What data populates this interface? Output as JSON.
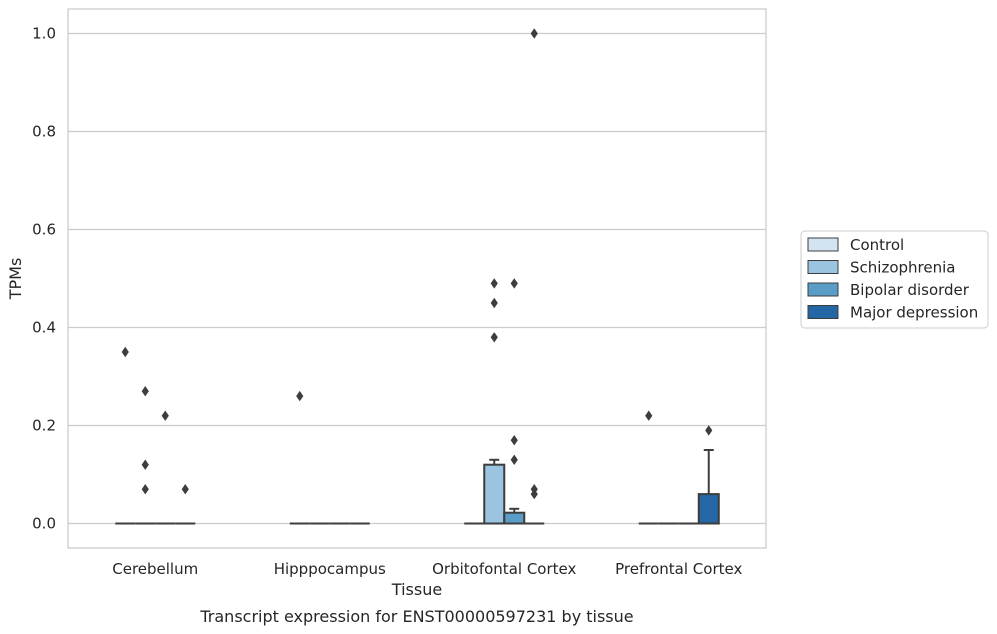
{
  "chart_data": {
    "type": "box",
    "caption": "Transcript expression for ENST00000597231 by tissue",
    "xlabel": "Tissue",
    "ylabel": "TPMs",
    "ylim": [
      -0.05,
      1.05
    ],
    "yticks": [
      0.0,
      0.2,
      0.4,
      0.6,
      0.8,
      1.0
    ],
    "ytick_labels": [
      "0.0",
      "0.2",
      "0.4",
      "0.6",
      "0.8",
      "1.0"
    ],
    "grid": "horizontal",
    "legend_position": "right",
    "categories": [
      "Cerebellum",
      "Hipppocampus",
      "Orbitofontal Cortex",
      "Prefrontal Cortex"
    ],
    "series": [
      {
        "name": "Control",
        "color": "#d3e3f2",
        "boxes": [
          {
            "q1": 0,
            "median": 0,
            "q3": 0,
            "whisker_low": 0,
            "whisker_high": 0,
            "outliers": [
              0.35
            ]
          },
          {
            "q1": 0,
            "median": 0,
            "q3": 0,
            "whisker_low": 0,
            "whisker_high": 0,
            "outliers": [
              0.26
            ]
          },
          {
            "q1": 0,
            "median": 0,
            "q3": 0,
            "whisker_low": 0,
            "whisker_high": 0,
            "outliers": []
          },
          {
            "q1": 0,
            "median": 0,
            "q3": 0,
            "whisker_low": 0,
            "whisker_high": 0,
            "outliers": [
              0.22
            ]
          }
        ]
      },
      {
        "name": "Schizophrenia",
        "color": "#9ac4df",
        "boxes": [
          {
            "q1": 0,
            "median": 0,
            "q3": 0,
            "whisker_low": 0,
            "whisker_high": 0,
            "outliers": [
              0.27,
              0.12,
              0.07
            ]
          },
          {
            "q1": 0,
            "median": 0,
            "q3": 0,
            "whisker_low": 0,
            "whisker_high": 0,
            "outliers": []
          },
          {
            "q1": 0,
            "median": 0,
            "q3": 0.12,
            "whisker_low": 0,
            "whisker_high": 0.13,
            "outliers": [
              0.49,
              0.45,
              0.38
            ]
          },
          {
            "q1": 0,
            "median": 0,
            "q3": 0,
            "whisker_low": 0,
            "whisker_high": 0,
            "outliers": []
          }
        ]
      },
      {
        "name": "Bipolar disorder",
        "color": "#5a9dc8",
        "boxes": [
          {
            "q1": 0,
            "median": 0,
            "q3": 0,
            "whisker_low": 0,
            "whisker_high": 0,
            "outliers": [
              0.22
            ]
          },
          {
            "q1": 0,
            "median": 0,
            "q3": 0,
            "whisker_low": 0,
            "whisker_high": 0,
            "outliers": []
          },
          {
            "q1": 0,
            "median": 0,
            "q3": 0.022,
            "whisker_low": 0,
            "whisker_high": 0.03,
            "outliers": [
              0.49,
              0.17,
              0.13
            ]
          },
          {
            "q1": 0,
            "median": 0,
            "q3": 0,
            "whisker_low": 0,
            "whisker_high": 0,
            "outliers": []
          }
        ]
      },
      {
        "name": "Major depression",
        "color": "#2566a6",
        "boxes": [
          {
            "q1": 0,
            "median": 0,
            "q3": 0,
            "whisker_low": 0,
            "whisker_high": 0,
            "outliers": [
              0.07
            ]
          },
          {
            "q1": 0,
            "median": 0,
            "q3": 0,
            "whisker_low": 0,
            "whisker_high": 0,
            "outliers": []
          },
          {
            "q1": 0,
            "median": 0,
            "q3": 0,
            "whisker_low": 0,
            "whisker_high": 0,
            "outliers": [
              1.0,
              0.07,
              0.06
            ]
          },
          {
            "q1": 0,
            "median": 0,
            "q3": 0.06,
            "whisker_low": 0,
            "whisker_high": 0.15,
            "outliers": [
              0.19
            ]
          }
        ]
      }
    ]
  }
}
